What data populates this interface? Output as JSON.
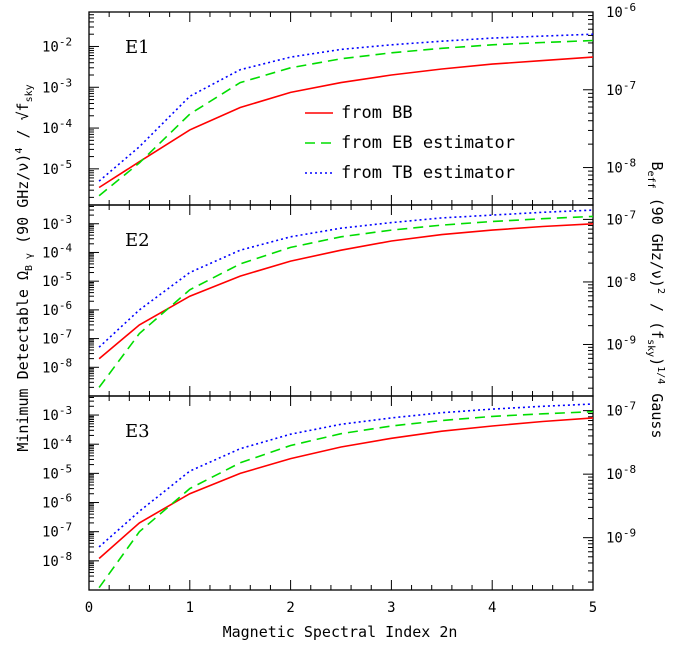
{
  "chart_data": {
    "type": "line",
    "xlabel": "Magnetic Spectral Index 2n",
    "ylabel": "Minimum Detectable Ω_{B,γ} (90 GHz/ν)⁴ / √f_sky",
    "ylabel_parts": {
      "main": "Minimum Detectable Ω",
      "sub": "B γ",
      "mid": " (90 GHz/ν)",
      "sup": "4",
      "tail": " / √f",
      "tail_sub": "sky"
    },
    "y2label": "B_eff (90 GHz/ν)² / (f_sky)^{1/4} Gauss",
    "y2label_parts": {
      "main": "B",
      "sub1": "eff",
      "mid": " (90 GHz/ν)",
      "sup1": "2",
      "mid2": " / (f",
      "sub2": "sky",
      "mid3": ")",
      "sup2": "1/4",
      "tail": " Gauss"
    },
    "x_ticks": [
      "0",
      "1",
      "2",
      "3",
      "4",
      "5"
    ],
    "xlim": [
      0,
      5
    ],
    "y_scale": "log",
    "legend": [
      {
        "label": "from BB",
        "color": "#ff0000",
        "style": "solid"
      },
      {
        "label": "from EB estimator",
        "color": "#00dd00",
        "style": "dashed"
      },
      {
        "label": "from TB estimator",
        "color": "#0000ff",
        "style": "dotted"
      }
    ],
    "x": [
      0.1,
      0.5,
      1.0,
      1.5,
      2.0,
      2.5,
      3.0,
      3.5,
      4.0,
      4.5,
      5.0
    ],
    "panels": [
      {
        "name": "E1",
        "ylim": [
          1.3e-06,
          0.07
        ],
        "y_ticks": [
          {
            "base": "10",
            "exp": "-5",
            "value": 1e-05
          },
          {
            "base": "10",
            "exp": "-4",
            "value": 0.0001
          },
          {
            "base": "10",
            "exp": "-3",
            "value": 0.001
          },
          {
            "base": "10",
            "exp": "-2",
            "value": 0.01
          }
        ],
        "y2_ticks": [
          {
            "base": "10",
            "exp": "-8",
            "value": 1e-08
          },
          {
            "base": "10",
            "exp": "-7",
            "value": 1e-07
          },
          {
            "base": "10",
            "exp": "-6",
            "value": 1e-06
          }
        ],
        "y2lim": [
          3.3e-09,
          1e-06
        ],
        "series": [
          {
            "name": "from BB",
            "values": [
              3.5e-06,
              1.5e-05,
              9e-05,
              0.00032,
              0.00075,
              0.0013,
              0.002,
              0.0028,
              0.0037,
              0.0045,
              0.0055
            ]
          },
          {
            "name": "from EB estimator",
            "values": [
              2.2e-06,
              1.4e-05,
              0.00022,
              0.0013,
              0.003,
              0.005,
              0.007,
              0.009,
              0.011,
              0.0125,
              0.014
            ]
          },
          {
            "name": "from TB estimator",
            "values": [
              5e-06,
              3.5e-05,
              0.0006,
              0.0027,
              0.0055,
              0.0085,
              0.011,
              0.0135,
              0.016,
              0.018,
              0.02
            ]
          }
        ]
      },
      {
        "name": "E2",
        "ylim": [
          1e-09,
          0.0045
        ],
        "y_ticks": [
          {
            "base": "10",
            "exp": "-8",
            "value": 1e-08
          },
          {
            "base": "10",
            "exp": "-7",
            "value": 1e-07
          },
          {
            "base": "10",
            "exp": "-6",
            "value": 1e-06
          },
          {
            "base": "10",
            "exp": "-5",
            "value": 1e-05
          },
          {
            "base": "10",
            "exp": "-4",
            "value": 0.0001
          },
          {
            "base": "10",
            "exp": "-3",
            "value": 0.001
          }
        ],
        "y2_ticks": [
          {
            "base": "10",
            "exp": "-9",
            "value": 1e-09
          },
          {
            "base": "10",
            "exp": "-8",
            "value": 1e-08
          },
          {
            "base": "10",
            "exp": "-7",
            "value": 1e-07
          }
        ],
        "y2lim": [
          1.5e-10,
          1.7e-07
        ],
        "series": [
          {
            "name": "from BB",
            "values": [
              2e-08,
              3e-07,
              3e-06,
              1.5e-05,
              5e-05,
              0.00012,
              0.00025,
              0.00042,
              0.0006,
              0.0008,
              0.001
            ]
          },
          {
            "name": "from EB estimator",
            "values": [
              2e-09,
              1.5e-07,
              5e-06,
              4e-05,
              0.00015,
              0.00035,
              0.0006,
              0.0009,
              0.0012,
              0.0015,
              0.0018
            ]
          },
          {
            "name": "from TB estimator",
            "values": [
              5e-08,
              1e-06,
              2e-05,
              0.00012,
              0.00035,
              0.0007,
              0.0011,
              0.0016,
              0.002,
              0.0025,
              0.003
            ]
          }
        ]
      },
      {
        "name": "E3",
        "ylim": [
          1e-09,
          0.0045
        ],
        "y_ticks": [
          {
            "base": "10",
            "exp": "-8",
            "value": 1e-08
          },
          {
            "base": "10",
            "exp": "-7",
            "value": 1e-07
          },
          {
            "base": "10",
            "exp": "-6",
            "value": 1e-06
          },
          {
            "base": "10",
            "exp": "-5",
            "value": 1e-05
          },
          {
            "base": "10",
            "exp": "-4",
            "value": 0.0001
          },
          {
            "base": "10",
            "exp": "-3",
            "value": 0.001
          }
        ],
        "y2_ticks": [
          {
            "base": "10",
            "exp": "-9",
            "value": 1e-09
          },
          {
            "base": "10",
            "exp": "-8",
            "value": 1e-08
          },
          {
            "base": "10",
            "exp": "-7",
            "value": 1e-07
          }
        ],
        "y2lim": [
          1.5e-10,
          1.7e-07
        ],
        "series": [
          {
            "name": "from BB",
            "values": [
              1.2e-08,
              2e-07,
              2e-06,
              1e-05,
              3.2e-05,
              8e-05,
              0.00016,
              0.00028,
              0.00042,
              0.0006,
              0.0008
            ]
          },
          {
            "name": "from EB estimator",
            "values": [
              1.2e-09,
              1e-07,
              3e-06,
              2.3e-05,
              9e-05,
              0.00023,
              0.00042,
              0.00065,
              0.0009,
              0.0011,
              0.0013
            ]
          },
          {
            "name": "from TB estimator",
            "values": [
              3e-08,
              5e-07,
              1.2e-05,
              7e-05,
              0.00022,
              0.00048,
              0.0008,
              0.0012,
              0.0016,
              0.002,
              0.0024
            ]
          }
        ]
      }
    ]
  }
}
